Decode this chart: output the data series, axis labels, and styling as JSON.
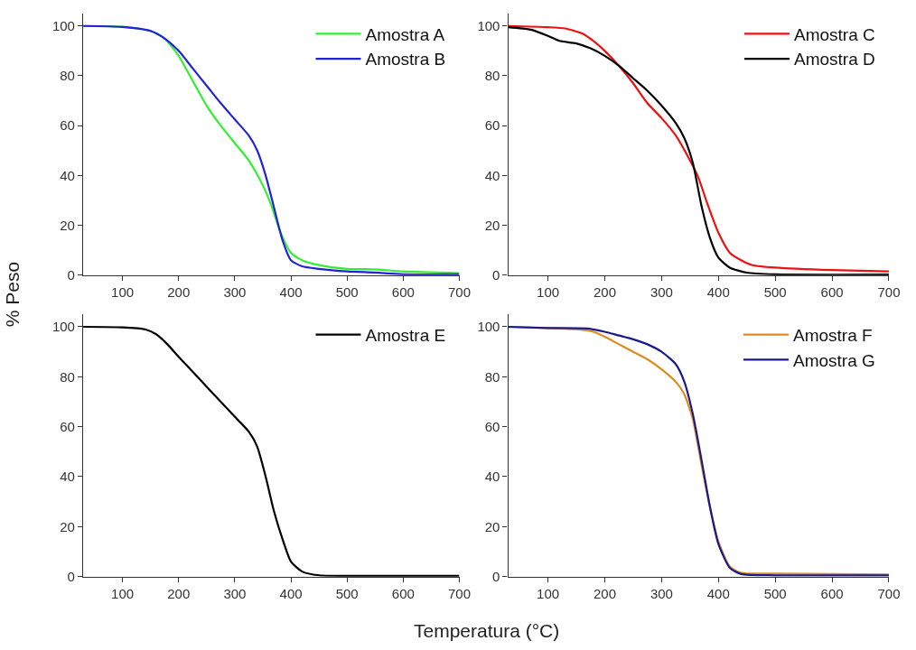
{
  "chart_data": [
    {
      "type": "line",
      "ylabel": "% Peso",
      "xlim": [
        30,
        700
      ],
      "ylim": [
        0,
        105
      ],
      "xticks": [
        100,
        200,
        300,
        400,
        500,
        600,
        700
      ],
      "yticks": [
        0,
        20,
        40,
        60,
        80,
        100
      ],
      "legend": "top right",
      "marker": "none",
      "line_style": "solid",
      "series": [
        {
          "name": "Amostra A",
          "color": "#33ee33",
          "x": [
            30,
            100,
            150,
            175,
            200,
            225,
            250,
            275,
            300,
            325,
            350,
            365,
            380,
            400,
            420,
            450,
            500,
            550,
            600,
            700
          ],
          "values": [
            100,
            99.7,
            98,
            95,
            88,
            78,
            68,
            60,
            53,
            46,
            36,
            28,
            18,
            9,
            6,
            4,
            2.5,
            2.3,
            1.5,
            0.8
          ]
        },
        {
          "name": "Amostra B",
          "color": "#2222dd",
          "x": [
            30,
            100,
            150,
            175,
            200,
            225,
            250,
            275,
            300,
            325,
            340,
            355,
            370,
            385,
            400,
            420,
            450,
            500,
            550,
            600,
            700
          ],
          "values": [
            100,
            99.6,
            98,
            95,
            90,
            83,
            76,
            69,
            62.5,
            56,
            50,
            40,
            27,
            14,
            6,
            3.5,
            2.5,
            1.5,
            1,
            0.3,
            0.3
          ]
        }
      ]
    },
    {
      "type": "line",
      "xlim": [
        30,
        700
      ],
      "ylim": [
        0,
        105
      ],
      "xticks": [
        100,
        200,
        300,
        400,
        500,
        600,
        700
      ],
      "yticks": [
        0,
        20,
        40,
        60,
        80,
        100
      ],
      "legend": "top right",
      "marker": "none",
      "line_style": "solid",
      "series": [
        {
          "name": "Amostra C",
          "color": "#ee1111",
          "x": [
            30,
            100,
            130,
            160,
            180,
            200,
            225,
            250,
            275,
            300,
            325,
            350,
            365,
            380,
            400,
            420,
            440,
            460,
            500,
            600,
            700
          ],
          "values": [
            100,
            99.5,
            99,
            97,
            94,
            90,
            84,
            77,
            69,
            63,
            56,
            46,
            39,
            29,
            17,
            9,
            6,
            4,
            3,
            2,
            1.5
          ]
        },
        {
          "name": "Amostra D",
          "color": "#000000",
          "x": [
            30,
            70,
            100,
            120,
            150,
            175,
            200,
            225,
            250,
            275,
            300,
            325,
            340,
            355,
            370,
            385,
            400,
            420,
            450,
            500,
            700
          ],
          "values": [
            99.5,
            98.5,
            96,
            94,
            93,
            91,
            88,
            84,
            79,
            74,
            68,
            61,
            55,
            45,
            28,
            15,
            7,
            3,
            1,
            0.3,
            0.2
          ]
        }
      ]
    },
    {
      "type": "line",
      "xlabel": "Temperatura (°C)",
      "xlim": [
        30,
        700
      ],
      "ylim": [
        0,
        105
      ],
      "xticks": [
        100,
        200,
        300,
        400,
        500,
        600,
        700
      ],
      "yticks": [
        0,
        20,
        40,
        60,
        80,
        100
      ],
      "legend": "top right",
      "marker": "none",
      "line_style": "solid",
      "series": [
        {
          "name": "Amostra E",
          "color": "#000000",
          "x": [
            30,
            100,
            140,
            160,
            180,
            200,
            225,
            250,
            275,
            300,
            325,
            340,
            355,
            370,
            385,
            400,
            420,
            450,
            500,
            700
          ],
          "values": [
            100,
            99.8,
            99,
            97,
            93,
            88,
            82,
            76,
            70,
            64,
            58,
            52,
            40,
            26,
            15,
            6,
            2,
            0.5,
            0.3,
            0.3
          ]
        }
      ]
    },
    {
      "type": "line",
      "xlim": [
        30,
        700
      ],
      "ylim": [
        0,
        105
      ],
      "xticks": [
        100,
        200,
        300,
        400,
        500,
        600,
        700
      ],
      "yticks": [
        0,
        20,
        40,
        60,
        80,
        100
      ],
      "legend": "top right",
      "marker": "none",
      "line_style": "solid",
      "series": [
        {
          "name": "Amostra F",
          "color": "#e08a1e",
          "x": [
            30,
            100,
            150,
            180,
            200,
            225,
            250,
            275,
            300,
            325,
            340,
            355,
            370,
            385,
            400,
            420,
            440,
            500,
            600,
            700
          ],
          "values": [
            100,
            99.5,
            99,
            98,
            96,
            93,
            90,
            87,
            83,
            78,
            73,
            63,
            45,
            28,
            14,
            4,
            1.5,
            1.2,
            1,
            0.8
          ]
        },
        {
          "name": "Amostra G",
          "color": "#1a1a8c",
          "x": [
            30,
            100,
            170,
            200,
            225,
            250,
            275,
            300,
            325,
            340,
            355,
            370,
            385,
            400,
            420,
            440,
            500,
            700
          ],
          "values": [
            100,
            99.5,
            99.3,
            98,
            96.5,
            95,
            93,
            90,
            85,
            78,
            65,
            47,
            28,
            13,
            3.5,
            1,
            0.5,
            0.5
          ]
        }
      ]
    }
  ]
}
